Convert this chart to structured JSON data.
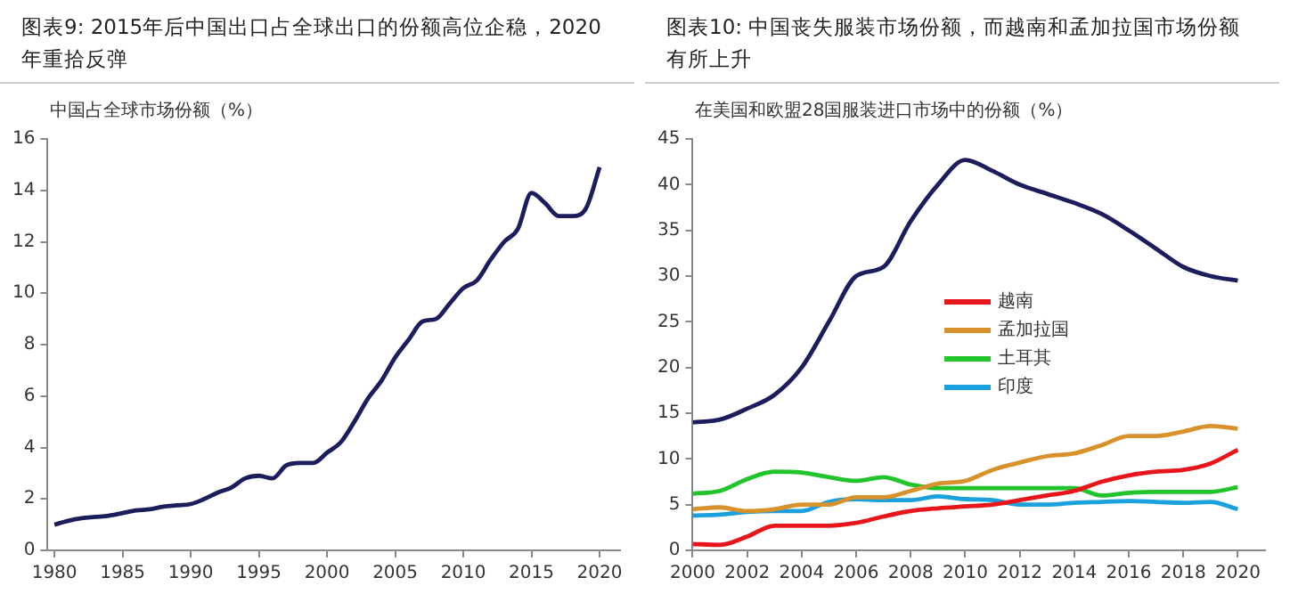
{
  "chart_data": [
    {
      "type": "line",
      "title": "图表9: 2015年后中国出口占全球出口的份额高位企稳，2020年重拾反弹",
      "subtitle": "中国占全球市场份额（%）",
      "x": [
        1980,
        1981,
        1982,
        1983,
        1984,
        1985,
        1986,
        1987,
        1988,
        1989,
        1990,
        1991,
        1992,
        1993,
        1994,
        1995,
        1996,
        1997,
        1998,
        1999,
        2000,
        2001,
        2002,
        2003,
        2004,
        2005,
        2006,
        2007,
        2008,
        2009,
        2010,
        2011,
        2012,
        2013,
        2014,
        2015,
        2016,
        2017,
        2018,
        2019,
        2020
      ],
      "series": [
        {
          "color": "#1b1d5c",
          "values": [
            1.0,
            1.15,
            1.25,
            1.3,
            1.35,
            1.45,
            1.55,
            1.6,
            1.7,
            1.75,
            1.8,
            2.0,
            2.25,
            2.45,
            2.8,
            2.9,
            2.8,
            3.3,
            3.4,
            3.4,
            3.8,
            4.2,
            5.0,
            5.9,
            6.6,
            7.5,
            8.2,
            8.9,
            9.0,
            9.6,
            10.2,
            10.5,
            11.3,
            12.0,
            12.5,
            13.9,
            13.5,
            13.0,
            13.0,
            13.3,
            14.9
          ]
        }
      ],
      "xlim": [
        1979.5,
        2021.5
      ],
      "xticks": [
        1980,
        1985,
        1990,
        1995,
        2000,
        2005,
        2010,
        2015,
        2020
      ],
      "ylim": [
        0,
        16
      ],
      "yticks": [
        0,
        2,
        4,
        6,
        8,
        10,
        12,
        14,
        16
      ],
      "grid": false,
      "legend": false,
      "marker": "none"
    },
    {
      "type": "line",
      "title": "图表10: 中国丧失服装市场份额，而越南和孟加拉国市场份额有所上升",
      "subtitle": "在美国和欧盟28国服装进口市场中的份额（%）",
      "x": [
        2000,
        2001,
        2002,
        2003,
        2004,
        2005,
        2006,
        2007,
        2008,
        2009,
        2010,
        2011,
        2012,
        2013,
        2014,
        2015,
        2016,
        2017,
        2018,
        2019,
        2020
      ],
      "series": [
        {
          "color": "#1b1d5c",
          "values": [
            14,
            14.3,
            15.5,
            17,
            20,
            25,
            30,
            31,
            36,
            40,
            42.7,
            41.5,
            40,
            39,
            38,
            36.8,
            35,
            33,
            31,
            30,
            29.5
          ]
        },
        {
          "name": "越南",
          "color": "#e8161b",
          "values": [
            0.7,
            0.6,
            1.5,
            2.7,
            2.7,
            2.7,
            3.0,
            3.7,
            4.3,
            4.6,
            4.8,
            5.0,
            5.5,
            6.0,
            6.5,
            7.5,
            8.2,
            8.6,
            8.8,
            9.5,
            11.0
          ]
        },
        {
          "name": "孟加拉国",
          "color": "#d9912c",
          "values": [
            4.5,
            4.7,
            4.3,
            4.5,
            5,
            5,
            5.8,
            5.8,
            6.5,
            7.3,
            7.6,
            8.8,
            9.6,
            10.3,
            10.6,
            11.5,
            12.5,
            12.5,
            13,
            13.6,
            13.3
          ]
        },
        {
          "name": "土耳其",
          "color": "#21c42a",
          "values": [
            6.2,
            6.5,
            7.8,
            8.6,
            8.5,
            8.0,
            7.6,
            8.0,
            7.2,
            6.8,
            6.8,
            6.8,
            6.8,
            6.8,
            6.8,
            6.0,
            6.3,
            6.4,
            6.4,
            6.4,
            6.9
          ]
        },
        {
          "name": "印度",
          "color": "#1aa0dc",
          "values": [
            3.8,
            3.9,
            4.2,
            4.3,
            4.3,
            5.3,
            5.6,
            5.5,
            5.5,
            5.9,
            5.6,
            5.5,
            5.0,
            5.0,
            5.2,
            5.3,
            5.4,
            5.3,
            5.2,
            5.3,
            4.5
          ]
        }
      ],
      "xlim": [
        2000,
        2021
      ],
      "xticks": [
        2000,
        2002,
        2004,
        2006,
        2008,
        2010,
        2012,
        2014,
        2016,
        2018,
        2020
      ],
      "ylim": [
        0,
        45
      ],
      "yticks": [
        0,
        5,
        10,
        15,
        20,
        25,
        30,
        35,
        40,
        45
      ],
      "grid": false,
      "legend": "right",
      "marker": "none"
    }
  ]
}
